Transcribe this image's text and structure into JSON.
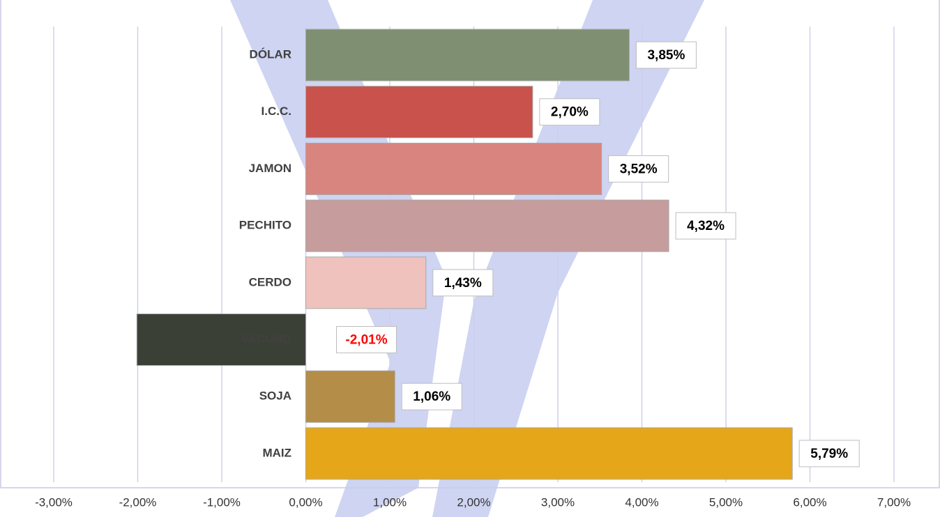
{
  "chart_data": {
    "type": "barh",
    "categories": [
      "DÓLAR",
      "I.C.C.",
      "JAMON",
      "PECHITO",
      "CERDO",
      "VACUNO",
      "SOJA",
      "MAIZ"
    ],
    "values": [
      3.85,
      2.7,
      3.52,
      4.32,
      1.43,
      -2.01,
      1.06,
      5.79
    ],
    "value_labels": [
      "3,85%",
      "2,70%",
      "3,52%",
      "4,32%",
      "1,43%",
      "-2,01%",
      "1,06%",
      "5,79%"
    ],
    "colors": [
      "#7f8f72",
      "#c9524c",
      "#d8857f",
      "#c79c9c",
      "#f0c2bd",
      "#3b4036",
      "#b48d48",
      "#e6a619"
    ],
    "xlim": [
      -3,
      7
    ],
    "xticks": [
      {
        "value": -3,
        "label": "-3,00%"
      },
      {
        "value": -2,
        "label": "-2,00%"
      },
      {
        "value": -1,
        "label": "-1,00%"
      },
      {
        "value": 0,
        "label": "0,00%"
      },
      {
        "value": 1,
        "label": "1,00%"
      },
      {
        "value": 2,
        "label": "2,00%"
      },
      {
        "value": 3,
        "label": "3,00%"
      },
      {
        "value": 4,
        "label": "4,00%"
      },
      {
        "value": 5,
        "label": "5,00%"
      },
      {
        "value": 6,
        "label": "6,00%"
      },
      {
        "value": 7,
        "label": "7,00%"
      }
    ],
    "grid": true
  }
}
